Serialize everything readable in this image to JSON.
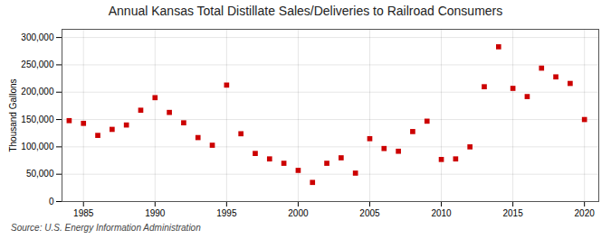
{
  "chart_data": {
    "type": "scatter",
    "title": "Annual Kansas Total Distillate Sales/Deliveries to Railroad Consumers",
    "ylabel": "Thousand Gallons",
    "source": "Source: U.S. Energy Information Administration",
    "x": [
      1984,
      1985,
      1986,
      1987,
      1988,
      1989,
      1990,
      1991,
      1992,
      1993,
      1994,
      1995,
      1996,
      1997,
      1998,
      1999,
      2000,
      2001,
      2002,
      2003,
      2004,
      2005,
      2006,
      2007,
      2008,
      2009,
      2010,
      2011,
      2012,
      2013,
      2014,
      2015,
      2016,
      2017,
      2018,
      2019,
      2020
    ],
    "values": [
      148000,
      143000,
      121000,
      132000,
      140000,
      167000,
      190000,
      163000,
      144000,
      117000,
      103000,
      213000,
      124000,
      88000,
      78000,
      70000,
      57000,
      35000,
      70000,
      80000,
      52000,
      115000,
      97000,
      92000,
      128000,
      147000,
      77000,
      78000,
      100000,
      210000,
      283000,
      207000,
      192000,
      244000,
      228000,
      216000,
      150000
    ],
    "color": "#cc0000",
    "marker": "square",
    "xlim": [
      1983.5,
      2021
    ],
    "ylim": [
      0,
      315000
    ],
    "xticks": [
      1985,
      1990,
      1995,
      2000,
      2005,
      2010,
      2015,
      2020
    ],
    "yticks": [
      0,
      {
        "value": 50000,
        "label": "50,000"
      },
      {
        "value": 100000,
        "label": "100,000"
      },
      {
        "value": 150000,
        "label": "150,000"
      },
      {
        "value": 200000,
        "label": "200,000"
      },
      {
        "value": 250000,
        "label": "250,000"
      },
      {
        "value": 300000,
        "label": "300,000"
      }
    ],
    "grid": true
  }
}
